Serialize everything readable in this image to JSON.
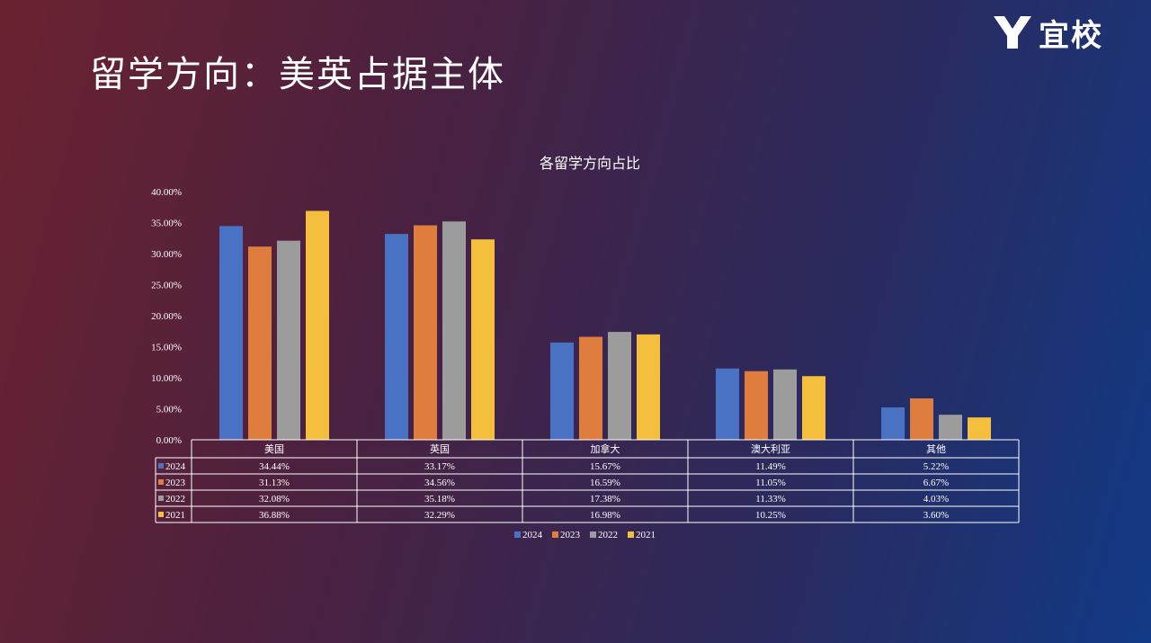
{
  "logo": {
    "text": "宜校"
  },
  "page": {
    "title": "留学方向：美英占据主体"
  },
  "colors": {
    "2024": "#4a72c4",
    "2023": "#de7d3e",
    "2022": "#9c9c9c",
    "2021": "#f5bf3e"
  },
  "chart_data": {
    "type": "bar",
    "title": "各留学方向占比",
    "categories": [
      "美国",
      "英国",
      "加拿大",
      "澳大利亚",
      "其他"
    ],
    "series": [
      {
        "name": "2024",
        "values": [
          34.44,
          33.17,
          15.67,
          11.49,
          5.22
        ],
        "labels": [
          "34.44%",
          "33.17%",
          "15.67%",
          "11.49%",
          "5.22%"
        ]
      },
      {
        "name": "2023",
        "values": [
          31.13,
          34.56,
          16.59,
          11.05,
          6.67
        ],
        "labels": [
          "31.13%",
          "34.56%",
          "16.59%",
          "11.05%",
          "6.67%"
        ]
      },
      {
        "name": "2022",
        "values": [
          32.08,
          35.18,
          17.38,
          11.33,
          4.03
        ],
        "labels": [
          "32.08%",
          "35.18%",
          "17.38%",
          "11.33%",
          "4.03%"
        ]
      },
      {
        "name": "2021",
        "values": [
          36.88,
          32.29,
          16.98,
          10.25,
          3.6
        ],
        "labels": [
          "36.88%",
          "32.29%",
          "16.98%",
          "10.25%",
          "3.60%"
        ]
      }
    ],
    "yticks": [
      "0.00%",
      "5.00%",
      "10.00%",
      "15.00%",
      "20.00%",
      "25.00%",
      "30.00%",
      "35.00%",
      "40.00%"
    ],
    "ylim": [
      0,
      40
    ],
    "data_table": true,
    "legend": "bottom"
  }
}
